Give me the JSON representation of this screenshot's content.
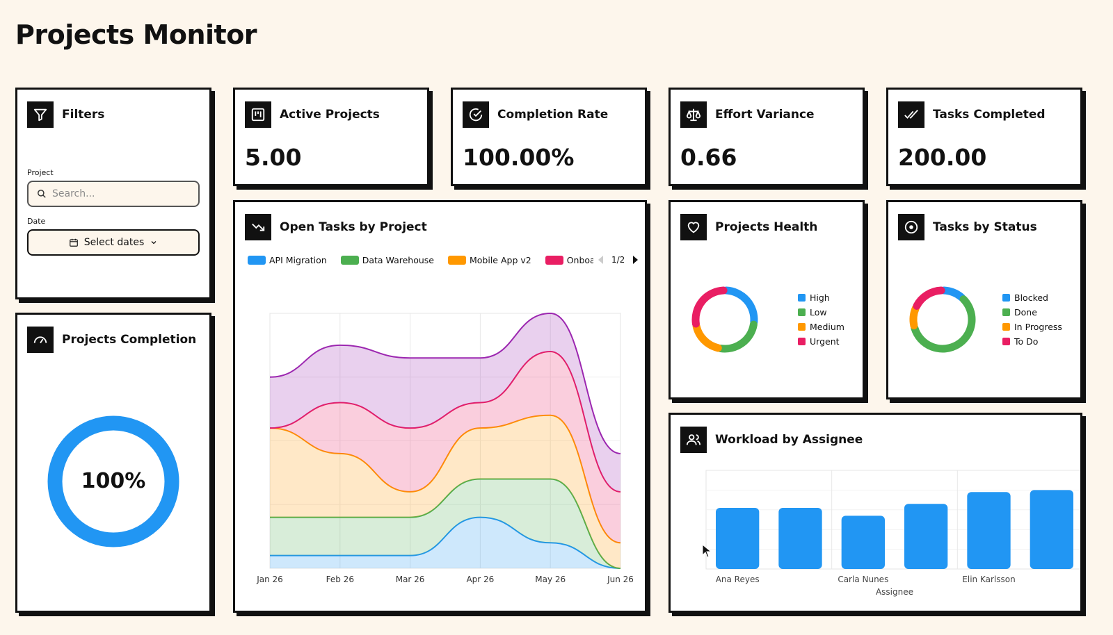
{
  "page": {
    "title": "Projects Monitor"
  },
  "filters": {
    "title": "Filters",
    "icon": "filter-icon",
    "project_label": "Project",
    "search_placeholder": "Search...",
    "date_label": "Date",
    "date_button": "Select dates"
  },
  "kpis": [
    {
      "title": "Active Projects",
      "value": "5.00",
      "icon": "kanban-chart-icon"
    },
    {
      "title": "Completion Rate",
      "value": "100.00%",
      "icon": "check-circle-icon"
    },
    {
      "title": "Effort Variance",
      "value": "0.66",
      "icon": "scale-icon"
    },
    {
      "title": "Tasks Completed",
      "value": "200.00",
      "icon": "double-check-icon"
    }
  ],
  "completion": {
    "title": "Projects Completion",
    "value": "100%",
    "fraction": 1.0,
    "color": "#2196f3",
    "icon": "gauge-icon"
  },
  "open_tasks": {
    "title": "Open Tasks by Project",
    "icon": "trending-down-icon",
    "legend": [
      {
        "name": "API Migration",
        "color": "#2196f3"
      },
      {
        "name": "Data Warehouse",
        "color": "#4caf50"
      },
      {
        "name": "Mobile App v2",
        "color": "#ff9800"
      },
      {
        "name": "Onboa",
        "color": "#e91e63"
      }
    ],
    "pager": "1/2"
  },
  "health": {
    "title": "Projects Health",
    "icon": "heart-icon",
    "legend": [
      {
        "name": "High",
        "color": "#2196f3"
      },
      {
        "name": "Low",
        "color": "#4caf50"
      },
      {
        "name": "Medium",
        "color": "#ff9800"
      },
      {
        "name": "Urgent",
        "color": "#e91e63"
      }
    ]
  },
  "status": {
    "title": "Tasks by Status",
    "icon": "target-icon",
    "legend": [
      {
        "name": "Blocked",
        "color": "#2196f3"
      },
      {
        "name": "Done",
        "color": "#4caf50"
      },
      {
        "name": "In Progress",
        "color": "#ff9800"
      },
      {
        "name": "To Do",
        "color": "#e91e63"
      }
    ]
  },
  "workload": {
    "title": "Workload by Assignee",
    "icon": "users-icon"
  },
  "chart_data": [
    {
      "type": "area",
      "stacked": true,
      "x": [
        "Jan 26",
        "Feb 26",
        "Mar 26",
        "Apr 26",
        "May 26",
        "Jun 26"
      ],
      "ylim": [
        0,
        40
      ],
      "grid": true,
      "series": [
        {
          "name": "API Migration",
          "color": "#2196f3",
          "values": [
            2,
            2,
            2,
            8,
            4,
            0
          ]
        },
        {
          "name": "Data Warehouse",
          "color": "#4caf50",
          "values": [
            6,
            6,
            6,
            6,
            10,
            0
          ]
        },
        {
          "name": "Mobile App v2",
          "color": "#ff9800",
          "values": [
            14,
            10,
            4,
            8,
            10,
            4
          ]
        },
        {
          "name": "Onboa",
          "color": "#e91e63",
          "values": [
            0,
            8,
            10,
            4,
            10,
            8
          ]
        },
        {
          "name": "",
          "color": "#9c27b0",
          "values": [
            8,
            9,
            11,
            7,
            6,
            6
          ]
        }
      ]
    },
    {
      "type": "pie",
      "donut": true,
      "labels": [
        "High",
        "Low",
        "Medium",
        "Urgent"
      ],
      "values": [
        27,
        26,
        19,
        28
      ],
      "colors": [
        "#2196f3",
        "#4caf50",
        "#ff9800",
        "#e91e63"
      ]
    },
    {
      "type": "pie",
      "donut": true,
      "labels": [
        "Blocked",
        "Done",
        "In Progress",
        "To Do"
      ],
      "values": [
        12,
        59,
        11,
        18
      ],
      "colors": [
        "#2196f3",
        "#4caf50",
        "#ff9800",
        "#e91e63"
      ]
    },
    {
      "type": "bar",
      "categories": [
        "Ana Reyes",
        "",
        "Carla Nunes",
        "",
        "Elin Karlsson",
        ""
      ],
      "values": [
        31,
        31,
        27,
        33,
        39,
        40
      ],
      "xlabel": "Assignee",
      "ylim": [
        0,
        50
      ],
      "color": "#2196f3"
    }
  ]
}
